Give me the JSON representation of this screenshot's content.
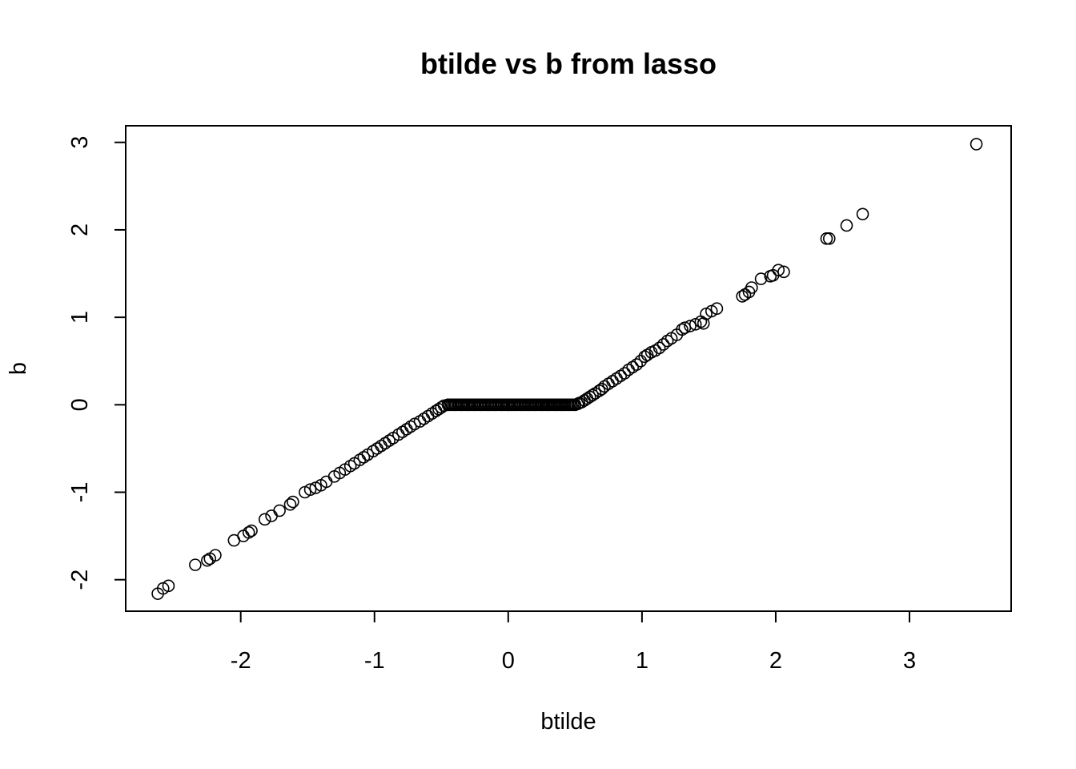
{
  "chart_data": {
    "type": "scatter",
    "title": "btilde vs b from lasso",
    "xlabel": "btilde",
    "ylabel": "b",
    "xlim": [
      -2.86,
      3.76
    ],
    "ylim": [
      -2.36,
      3.19
    ],
    "xticks": [
      -2,
      -1,
      0,
      1,
      2,
      3
    ],
    "yticks": [
      -2,
      -1,
      0,
      1,
      2,
      3
    ],
    "xtick_labels": [
      "-2",
      "-1",
      "0",
      "1",
      "2",
      "3"
    ],
    "ytick_labels": [
      "-2",
      "-1",
      "0",
      "1",
      "2",
      "3"
    ],
    "marker": "open-circle",
    "grid": false,
    "legend": "none",
    "colors": {
      "points": "#000000",
      "axes": "#000000",
      "background": "#ffffff"
    },
    "x": [
      3.5,
      2.65,
      2.53,
      2.4,
      2.38,
      2.06,
      2.02,
      1.98,
      1.96,
      1.89,
      1.82,
      1.8,
      1.77,
      1.75,
      1.56,
      1.52,
      1.48,
      1.46,
      1.44,
      1.4,
      1.36,
      1.32,
      1.3,
      1.26,
      1.22,
      1.19,
      1.16,
      1.13,
      1.1,
      1.07,
      1.04,
      1.02,
      0.99,
      0.96,
      0.93,
      0.9,
      0.87,
      0.84,
      0.81,
      0.78,
      0.75,
      0.72,
      0.7,
      0.68,
      0.65,
      0.63,
      0.61,
      0.59,
      0.57,
      0.55,
      0.53,
      0.52,
      -0.48,
      -0.5,
      -0.52,
      -0.54,
      -0.57,
      -0.6,
      -0.63,
      -0.66,
      -0.7,
      -0.73,
      -0.76,
      -0.79,
      -0.82,
      -0.86,
      -0.89,
      -0.92,
      -0.95,
      -0.98,
      -1.01,
      -1.05,
      -1.08,
      -1.11,
      -1.15,
      -1.18,
      -1.22,
      -1.26,
      -1.3,
      -1.36,
      -1.4,
      -1.44,
      -1.48,
      -1.52,
      -1.61,
      -1.63,
      -1.71,
      -1.77,
      -1.82,
      -1.92,
      -1.94,
      -1.98,
      -2.05,
      -2.19,
      -2.23,
      -2.25,
      -2.34,
      -2.54,
      -2.58,
      -2.62,
      -0.45,
      -0.4,
      -0.35,
      -0.3,
      -0.25,
      -0.2,
      -0.15,
      -0.1,
      -0.05,
      0.0,
      0.05,
      0.1,
      0.15,
      0.2,
      0.25,
      0.3,
      0.35,
      0.4,
      0.45,
      0.5
    ],
    "y": [
      2.98,
      2.18,
      2.05,
      1.9,
      1.9,
      1.52,
      1.54,
      1.48,
      1.47,
      1.44,
      1.34,
      1.29,
      1.26,
      1.24,
      1.1,
      1.07,
      1.04,
      0.93,
      0.95,
      0.92,
      0.9,
      0.88,
      0.86,
      0.8,
      0.76,
      0.73,
      0.69,
      0.65,
      0.62,
      0.6,
      0.57,
      0.55,
      0.5,
      0.46,
      0.43,
      0.4,
      0.36,
      0.33,
      0.3,
      0.27,
      0.24,
      0.21,
      0.18,
      0.16,
      0.13,
      0.11,
      0.09,
      0.07,
      0.05,
      0.03,
      0.02,
      0.01,
      -0.01,
      -0.03,
      -0.05,
      -0.07,
      -0.1,
      -0.13,
      -0.16,
      -0.19,
      -0.22,
      -0.25,
      -0.28,
      -0.31,
      -0.34,
      -0.38,
      -0.41,
      -0.44,
      -0.47,
      -0.5,
      -0.53,
      -0.57,
      -0.6,
      -0.63,
      -0.67,
      -0.7,
      -0.74,
      -0.78,
      -0.82,
      -0.88,
      -0.92,
      -0.95,
      -0.97,
      -1.0,
      -1.11,
      -1.14,
      -1.21,
      -1.27,
      -1.31,
      -1.44,
      -1.46,
      -1.5,
      -1.55,
      -1.72,
      -1.76,
      -1.78,
      -1.83,
      -2.07,
      -2.1,
      -2.16,
      0.0,
      0.0,
      0.0,
      0.0,
      0.0,
      0.0,
      0.0,
      0.0,
      0.0,
      0.0,
      0.0,
      0.0,
      0.0,
      0.0,
      0.0,
      0.0,
      0.0,
      0.0,
      0.0,
      0.0
    ]
  }
}
